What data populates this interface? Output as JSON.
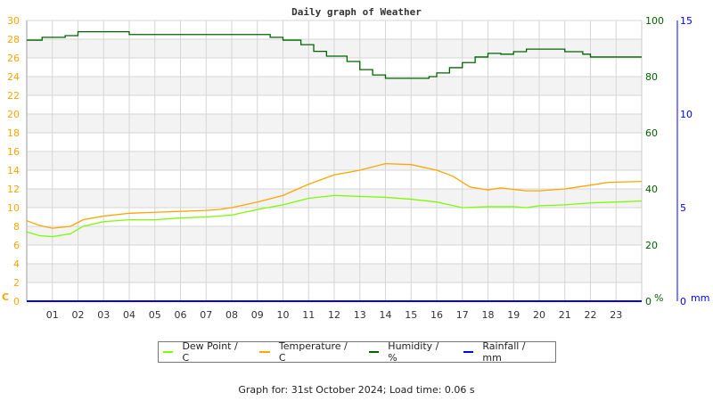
{
  "chart_data": {
    "type": "line",
    "title": "Daily graph of Weather",
    "x_ticks": [
      "01",
      "02",
      "03",
      "04",
      "05",
      "06",
      "07",
      "08",
      "09",
      "10",
      "11",
      "12",
      "13",
      "14",
      "15",
      "16",
      "17",
      "18",
      "19",
      "20",
      "21",
      "22",
      "23"
    ],
    "xlim": [
      0,
      24
    ],
    "y_left": {
      "unit": "C",
      "ylim": [
        0,
        30
      ],
      "ticks": [
        "0",
        "2",
        "4",
        "6",
        "8",
        "10",
        "12",
        "14",
        "16",
        "18",
        "20",
        "22",
        "24",
        "26",
        "28",
        "30"
      ],
      "color": "#ffa500"
    },
    "y_right": {
      "unit": "%",
      "ylim": [
        0,
        100
      ],
      "ticks": [
        "0",
        "20",
        "40",
        "60",
        "80",
        "100"
      ],
      "color": "#006400"
    },
    "y_rain": {
      "unit": "mm",
      "ylim": [
        0,
        15
      ],
      "ticks": [
        "0",
        "5",
        "10",
        "15"
      ],
      "color": "#0000ff"
    },
    "grid": true,
    "series": [
      {
        "name": "Dew Point / C",
        "color": "#7cfc00",
        "axis": "left",
        "x": [
          0,
          0.5,
          1,
          1.7,
          2.2,
          3,
          4,
          5,
          6,
          7,
          8,
          9,
          10,
          11,
          12,
          13,
          14,
          15,
          16,
          17,
          18,
          19,
          19.5,
          20,
          21,
          22,
          23,
          24
        ],
        "y": [
          7.4,
          7.0,
          6.9,
          7.2,
          8.0,
          8.5,
          8.7,
          8.7,
          8.9,
          9.0,
          9.2,
          9.8,
          10.3,
          11.0,
          11.3,
          11.2,
          11.1,
          10.9,
          10.6,
          10.0,
          10.1,
          10.1,
          10.0,
          10.2,
          10.3,
          10.5,
          10.6,
          10.7
        ]
      },
      {
        "name": "Temperature / C",
        "color": "#ffa500",
        "axis": "left",
        "x": [
          0,
          0.5,
          1,
          1.7,
          2.2,
          3,
          4,
          5,
          6,
          7,
          7.5,
          8,
          9,
          10,
          11,
          12,
          13,
          14,
          15,
          16,
          16.6,
          17.3,
          18,
          18.5,
          19.5,
          20,
          21,
          22,
          22.7,
          24
        ],
        "y": [
          8.6,
          8.1,
          7.8,
          8.0,
          8.7,
          9.1,
          9.4,
          9.5,
          9.6,
          9.7,
          9.8,
          10.0,
          10.6,
          11.3,
          12.5,
          13.5,
          14.0,
          14.7,
          14.6,
          14.0,
          13.4,
          12.2,
          11.9,
          12.1,
          11.8,
          11.8,
          12.0,
          12.4,
          12.7,
          12.8
        ]
      },
      {
        "name": "Humidity / %",
        "color": "#006400",
        "axis": "right",
        "step": true,
        "x": [
          0,
          0.6,
          1.5,
          2,
          4,
          9,
          9.5,
          10,
          10.7,
          11.2,
          11.7,
          12.5,
          13,
          13.5,
          14,
          15,
          15.7,
          16,
          16.5,
          17,
          17.5,
          18,
          18.5,
          19,
          19.5,
          20,
          21,
          21.7,
          22,
          24
        ],
        "y": [
          93,
          94,
          94.6,
          96,
          95,
          95,
          94,
          93,
          91.4,
          89,
          87.3,
          85.4,
          82.5,
          80.6,
          79.4,
          79.4,
          80,
          81.3,
          83.2,
          85,
          87,
          88.3,
          88,
          88.9,
          89.8,
          89.8,
          88.9,
          88,
          87,
          87
        ]
      },
      {
        "name": "Rainfall / mm",
        "color": "#0000ff",
        "axis": "rain",
        "x": [
          0,
          24
        ],
        "y": [
          0,
          0
        ]
      }
    ]
  },
  "footer": "Graph for: 31st October 2024; Load time: 0.06 s"
}
